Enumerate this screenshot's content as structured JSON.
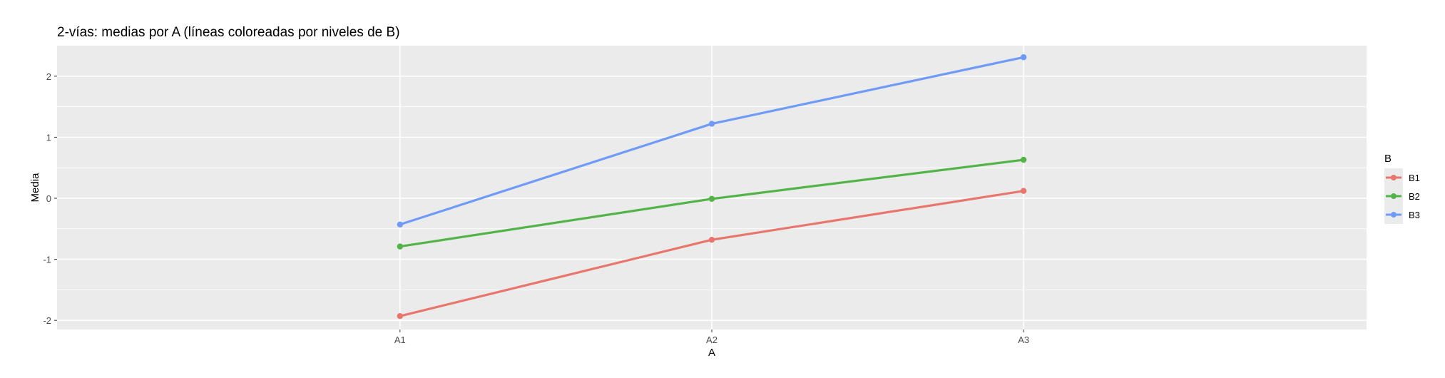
{
  "chart_data": {
    "type": "line",
    "title": "2-vías: medias por A (líneas coloreadas por niveles de B)",
    "xlabel": "A",
    "ylabel": "Media",
    "categories": [
      "A1",
      "A2",
      "A3"
    ],
    "ylim": [
      -2.15,
      2.5
    ],
    "yticks": [
      -2,
      -1,
      0,
      1,
      2
    ],
    "ytick_labels": [
      "-2",
      "-1",
      "0",
      "1",
      "2"
    ],
    "grid": true,
    "legend": {
      "title": "B",
      "position": "right"
    },
    "series": [
      {
        "name": "B1",
        "color": "#E8766D",
        "values": [
          -1.93,
          -0.68,
          0.12
        ]
      },
      {
        "name": "B2",
        "color": "#52B447",
        "values": [
          -0.79,
          -0.01,
          0.63
        ]
      },
      {
        "name": "B3",
        "color": "#6F9BF7",
        "values": [
          -0.43,
          1.22,
          2.31
        ]
      }
    ],
    "panel_background": "#EBEBEB",
    "grid_color": "#FFFFFF"
  }
}
